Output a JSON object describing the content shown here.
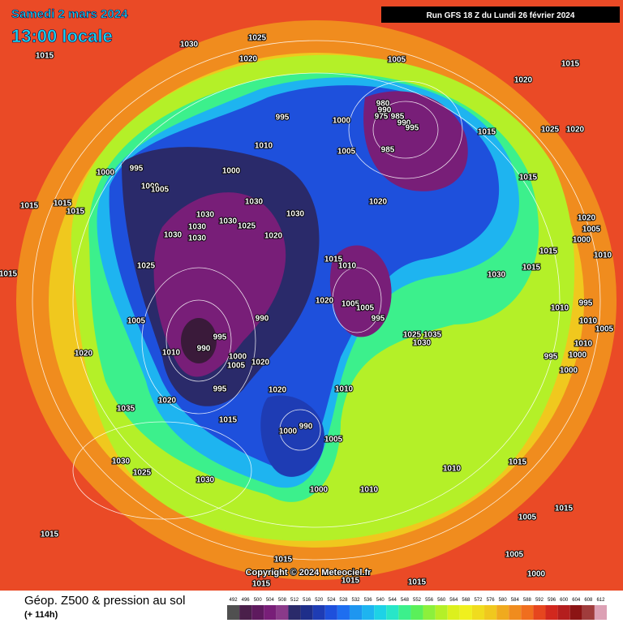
{
  "header": {
    "date": "Samedi 2 mars 2024",
    "time": "13:00 locale",
    "run": "Run GFS 18 Z du Lundi 26 février 2024"
  },
  "map": {
    "pressure_labels": [
      1030,
      1025,
      1015,
      1020,
      1005,
      1015,
      1020,
      995,
      980,
      990,
      975,
      985,
      990,
      995,
      1000,
      1015,
      1025,
      1020,
      1010,
      985,
      1005,
      995,
      1000,
      1000,
      1015,
      1000,
      1005,
      1020,
      1030,
      1015,
      1015,
      1015,
      1030,
      1030,
      1030,
      1025,
      1030,
      1020,
      1005,
      1030,
      1030,
      1020,
      1000,
      1015,
      1010,
      1015,
      1010,
      1025,
      1015,
      1030,
      1015,
      1020,
      1005,
      1005,
      1010,
      995,
      990,
      995,
      1005,
      1010,
      1005,
      995,
      1025,
      1035,
      1030,
      1010,
      990,
      1010,
      1000,
      995,
      1000,
      1020,
      1005,
      1020,
      1000,
      1010,
      995,
      1020,
      1020,
      1035,
      1015,
      990,
      1000,
      1005,
      1030,
      1025,
      1010,
      1015,
      1030,
      1000,
      1010,
      1005,
      1015,
      1015,
      1005,
      1015,
      1000,
      1015,
      1015,
      1015
    ]
  },
  "footer": {
    "copyright": "Copyright © 2024 Meteociel.fr",
    "title": "Géop. Z500 & pression au sol",
    "lead": "(+ 114h)",
    "scale": {
      "labels": [
        492,
        496,
        500,
        504,
        508,
        512,
        516,
        520,
        524,
        528,
        532,
        536,
        540,
        544,
        548,
        552,
        556,
        560,
        564,
        568,
        572,
        576,
        580,
        584,
        588,
        592,
        596,
        600,
        604,
        608,
        612
      ],
      "colors": [
        "#505050",
        "#4a1f4a",
        "#5e1a5e",
        "#781e78",
        "#8a3a8a",
        "#2a2a6a",
        "#1e2e8a",
        "#1e3cb4",
        "#1e50dc",
        "#1e6ef0",
        "#1e96f0",
        "#1eb4f0",
        "#1ed2e6",
        "#28e6c8",
        "#3cf08c",
        "#5af05a",
        "#8cf03c",
        "#b4f028",
        "#dcf01e",
        "#f0f01e",
        "#f0dc1e",
        "#f0c81e",
        "#f0aa1e",
        "#f08c1e",
        "#f06e1e",
        "#e6461e",
        "#d2281e",
        "#b41e1e",
        "#8c1414",
        "#a03c3c",
        "#dca0b4"
      ]
    }
  }
}
